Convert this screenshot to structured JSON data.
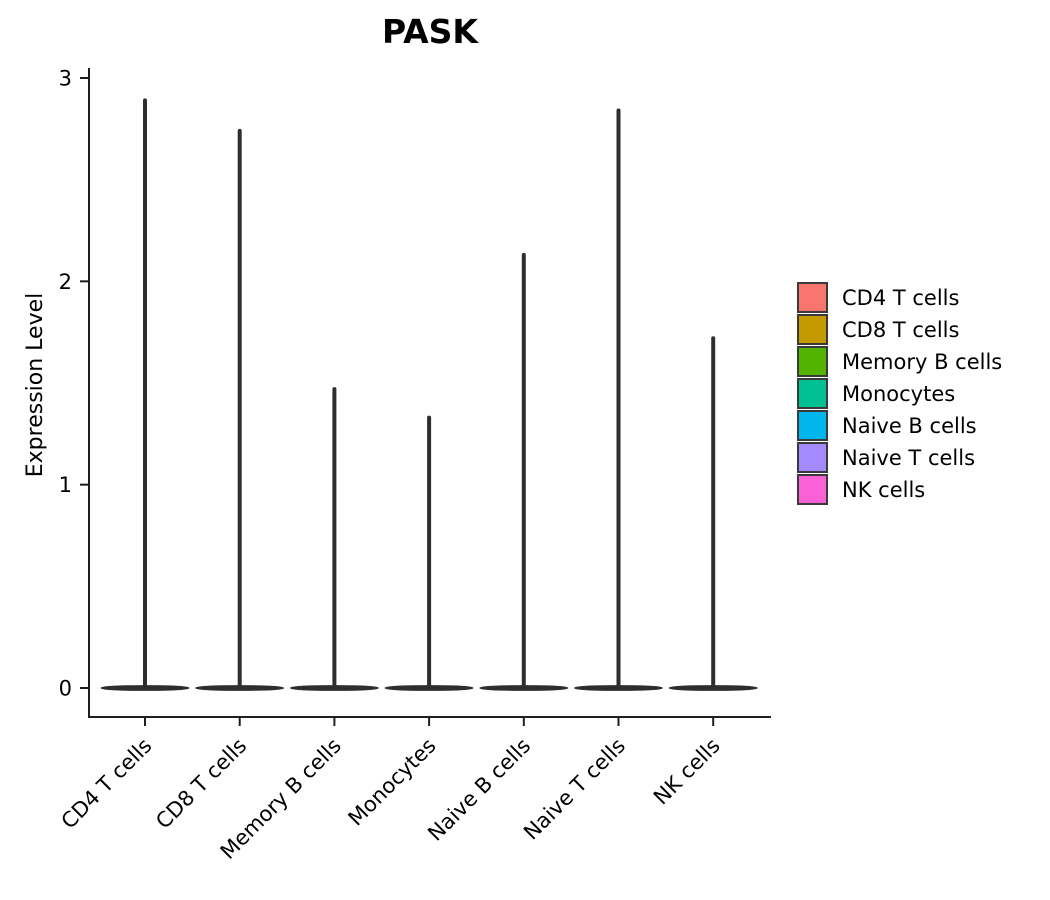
{
  "chart_data": {
    "type": "violin",
    "title": "PASK",
    "xlabel": "",
    "ylabel": "Expression Level",
    "ylim": [
      0,
      3
    ],
    "y_ticks": [
      "0",
      "1",
      "2",
      "3"
    ],
    "grid": false,
    "legend_position": "right",
    "categories": [
      "CD4 T cells",
      "CD8 T cells",
      "Memory B cells",
      "Monocytes",
      "Naive B cells",
      "Naive T cells",
      "NK cells"
    ],
    "violins": [
      {
        "label": "CD4 T cells",
        "color": "#F8766D",
        "density_peak_at": 0,
        "max_value": 2.89
      },
      {
        "label": "CD8 T cells",
        "color": "#C49A00",
        "density_peak_at": 0,
        "max_value": 2.74
      },
      {
        "label": "Memory B cells",
        "color": "#53B400",
        "density_peak_at": 0,
        "max_value": 1.47
      },
      {
        "label": "Monocytes",
        "color": "#00C094",
        "density_peak_at": 0,
        "max_value": 1.33
      },
      {
        "label": "Naive B cells",
        "color": "#00B6EB",
        "density_peak_at": 0,
        "max_value": 2.13
      },
      {
        "label": "Naive T cells",
        "color": "#A58AFF",
        "density_peak_at": 0,
        "max_value": 2.84
      },
      {
        "label": "NK cells",
        "color": "#FB61D7",
        "density_peak_at": 0,
        "max_value": 1.72
      }
    ],
    "violin_render_color": "#2e2e2e",
    "axis_color": "#1f1f1f",
    "text_color": "#000000"
  }
}
